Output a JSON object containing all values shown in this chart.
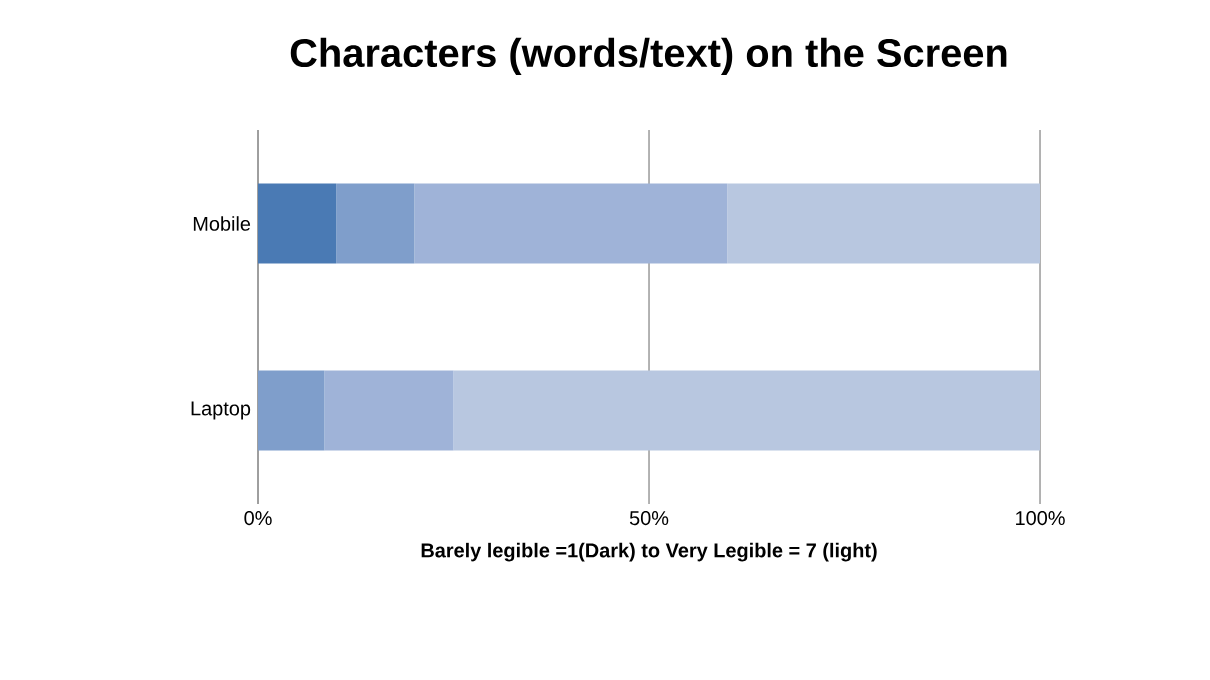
{
  "chart_data": {
    "type": "bar",
    "orientation": "horizontal",
    "stacked": true,
    "title": "Characters (words/text) on the Screen",
    "xlabel": "Barely legible =1(Dark) to Very Legible = 7 (light)",
    "categories": [
      "Mobile",
      "Laptop"
    ],
    "series": [
      {
        "color": "#4a7ab4",
        "values": [
          10,
          0
        ]
      },
      {
        "color": "#7f9ecb",
        "values": [
          10,
          8.5
        ]
      },
      {
        "color": "#9fb3d8",
        "values": [
          40,
          16.5
        ]
      },
      {
        "color": "#b8c7e0",
        "values": [
          40,
          75
        ]
      }
    ],
    "xlim": [
      0,
      100
    ],
    "xticks": [
      {
        "value": 0,
        "label": "0%"
      },
      {
        "value": 50,
        "label": "50%"
      },
      {
        "value": 100,
        "label": "100%"
      }
    ],
    "grid": "x"
  }
}
